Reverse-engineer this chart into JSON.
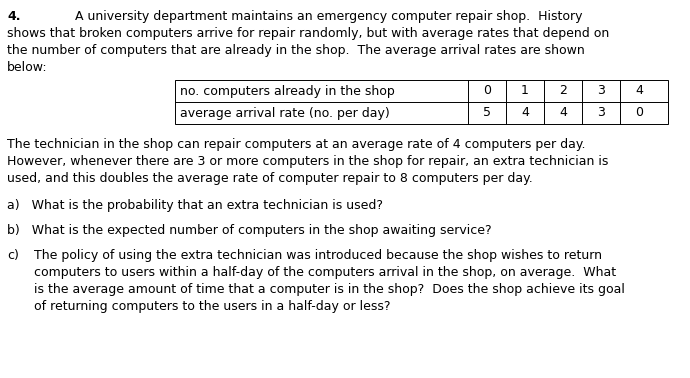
{
  "question_number": "4.",
  "intro_line1": "A university department maintains an emergency computer repair shop.  History",
  "intro_line2": "shows that broken computers arrive for repair randomly, but with average rates that depend on",
  "intro_line3": "the number of computers that are already in the shop.  The average arrival rates are shown",
  "intro_line4": "below:",
  "table_col_header": [
    "no. computers already in the shop",
    "0",
    "1",
    "2",
    "3",
    "4"
  ],
  "table_row2": [
    "average arrival rate (no. per day)",
    "5",
    "4",
    "4",
    "3",
    "0"
  ],
  "para2_line1": "The technician in the shop can repair computers at an average rate of 4 computers per day.",
  "para2_line2": "However, whenever there are 3 or more computers in the shop for repair, an extra technician is",
  "para2_line3": "used, and this doubles the average rate of computer repair to 8 computers per day.",
  "qa": "a)   What is the probability that an extra technician is used?",
  "qb": "b)   What is the expected number of computers in the shop awaiting service?",
  "qc_label": "c)",
  "qc_line1": "The policy of using the extra technician was introduced because the shop wishes to return",
  "qc_line2": "computers to users within a half-day of the computers arrival in the shop, on average.  What",
  "qc_line3": "is the average amount of time that a computer is in the shop?  Does the shop achieve its goal",
  "qc_line4": "of returning computers to the users in a half-day or less?",
  "font_size": 9.0,
  "bg_color": "#ffffff",
  "text_color": "#000000"
}
